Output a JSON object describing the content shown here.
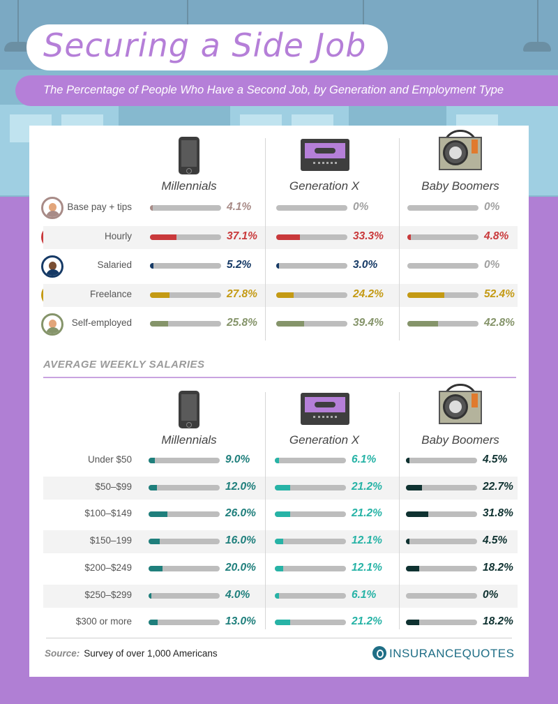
{
  "title": "Securing a Side Job",
  "subtitle": "The Percentage of People Who Have a Second Job, by Generation and Employment Type",
  "generations": [
    "Millennials",
    "Generation X",
    "Baby Boomers"
  ],
  "colors": {
    "base_pay": "#a88b87",
    "hourly": "#c9393b",
    "salaried": "#163a66",
    "freelance": "#c49a14",
    "self_employed": "#85946a",
    "millennials_salary": "#1f7f7c",
    "genx_salary": "#27b3a6",
    "boomers_salary": "#0f3231",
    "track": "#bdbdbd",
    "accent": "#b57fd8"
  },
  "chart_data": [
    {
      "type": "bar",
      "orientation": "horizontal",
      "categories": [
        "Base pay + tips",
        "Hourly",
        "Salaried",
        "Freelance",
        "Self-employed"
      ],
      "series": [
        {
          "name": "Millennials",
          "values": [
            4.1,
            37.1,
            5.2,
            27.8,
            25.8
          ]
        },
        {
          "name": "Generation X",
          "values": [
            0,
            33.3,
            3.0,
            24.2,
            39.4
          ]
        },
        {
          "name": "Baby Boomers",
          "values": [
            0,
            4.8,
            0,
            52.4,
            42.8
          ]
        }
      ],
      "labels": [
        [
          "4.1%",
          "37.1%",
          "5.2%",
          "27.8%",
          "25.8%"
        ],
        [
          "0%",
          "33.3%",
          "3.0%",
          "24.2%",
          "39.4%"
        ],
        [
          "0%",
          "4.8%",
          "0%",
          "52.4%",
          "42.8%"
        ]
      ],
      "xlim": [
        0,
        100
      ]
    },
    {
      "type": "bar",
      "orientation": "horizontal",
      "title": "AVERAGE WEEKLY SALARIES",
      "categories": [
        "Under $50",
        "$50–$99",
        "$100–$149",
        "$150–199",
        "$200–$249",
        "$250–$299",
        "$300 or more"
      ],
      "series": [
        {
          "name": "Millennials",
          "values": [
            9.0,
            12.0,
            26.0,
            16.0,
            20.0,
            4.0,
            13.0
          ]
        },
        {
          "name": "Generation X",
          "values": [
            6.1,
            21.2,
            21.2,
            12.1,
            12.1,
            6.1,
            21.2
          ]
        },
        {
          "name": "Baby Boomers",
          "values": [
            4.5,
            22.7,
            31.8,
            4.5,
            18.2,
            0,
            18.2
          ]
        }
      ],
      "labels": [
        [
          "9.0%",
          "12.0%",
          "26.0%",
          "16.0%",
          "20.0%",
          "4.0%",
          "13.0%"
        ],
        [
          "6.1%",
          "21.2%",
          "21.2%",
          "12.1%",
          "12.1%",
          "6.1%",
          "21.2%"
        ],
        [
          "4.5%",
          "22.7%",
          "31.8%",
          "4.5%",
          "18.2%",
          "0%",
          "18.2%"
        ]
      ],
      "xlim": [
        0,
        100
      ]
    }
  ],
  "footer": {
    "source_label": "Source:",
    "source_text": "Survey of over 1,000 Americans",
    "brand": "INSURANCEQUOTES"
  },
  "icons": [
    "phone-icon",
    "cassette-icon",
    "boombox-icon"
  ]
}
